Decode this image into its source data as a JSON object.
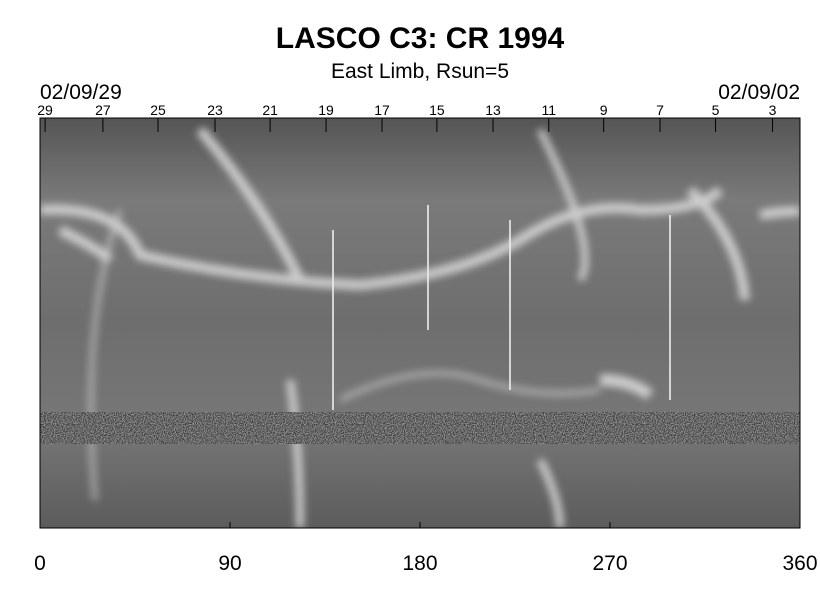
{
  "chart_data": {
    "type": "image",
    "title": "LASCO C3: CR 1994",
    "subtitle": "East Limb, Rsun=5",
    "start_date": "02/09/29",
    "end_date": "02/09/02",
    "xlim": [
      0,
      360
    ],
    "xticks": [
      0,
      90,
      180,
      270,
      360
    ],
    "top_ticks": [
      {
        "value": 2.4,
        "label": "29"
      },
      {
        "value": 29.8,
        "label": "27"
      },
      {
        "value": 55.9,
        "label": "25"
      },
      {
        "value": 82.9,
        "label": "23"
      },
      {
        "value": 109,
        "label": "21"
      },
      {
        "value": 135.5,
        "label": "19"
      },
      {
        "value": 162,
        "label": "17"
      },
      {
        "value": 188,
        "label": "15"
      },
      {
        "value": 214.6,
        "label": "13"
      },
      {
        "value": 241,
        "label": "11"
      },
      {
        "value": 267,
        "label": "9"
      },
      {
        "value": 293.7,
        "label": "7"
      },
      {
        "value": 320,
        "label": "5"
      },
      {
        "value": 347,
        "label": "3"
      }
    ]
  }
}
